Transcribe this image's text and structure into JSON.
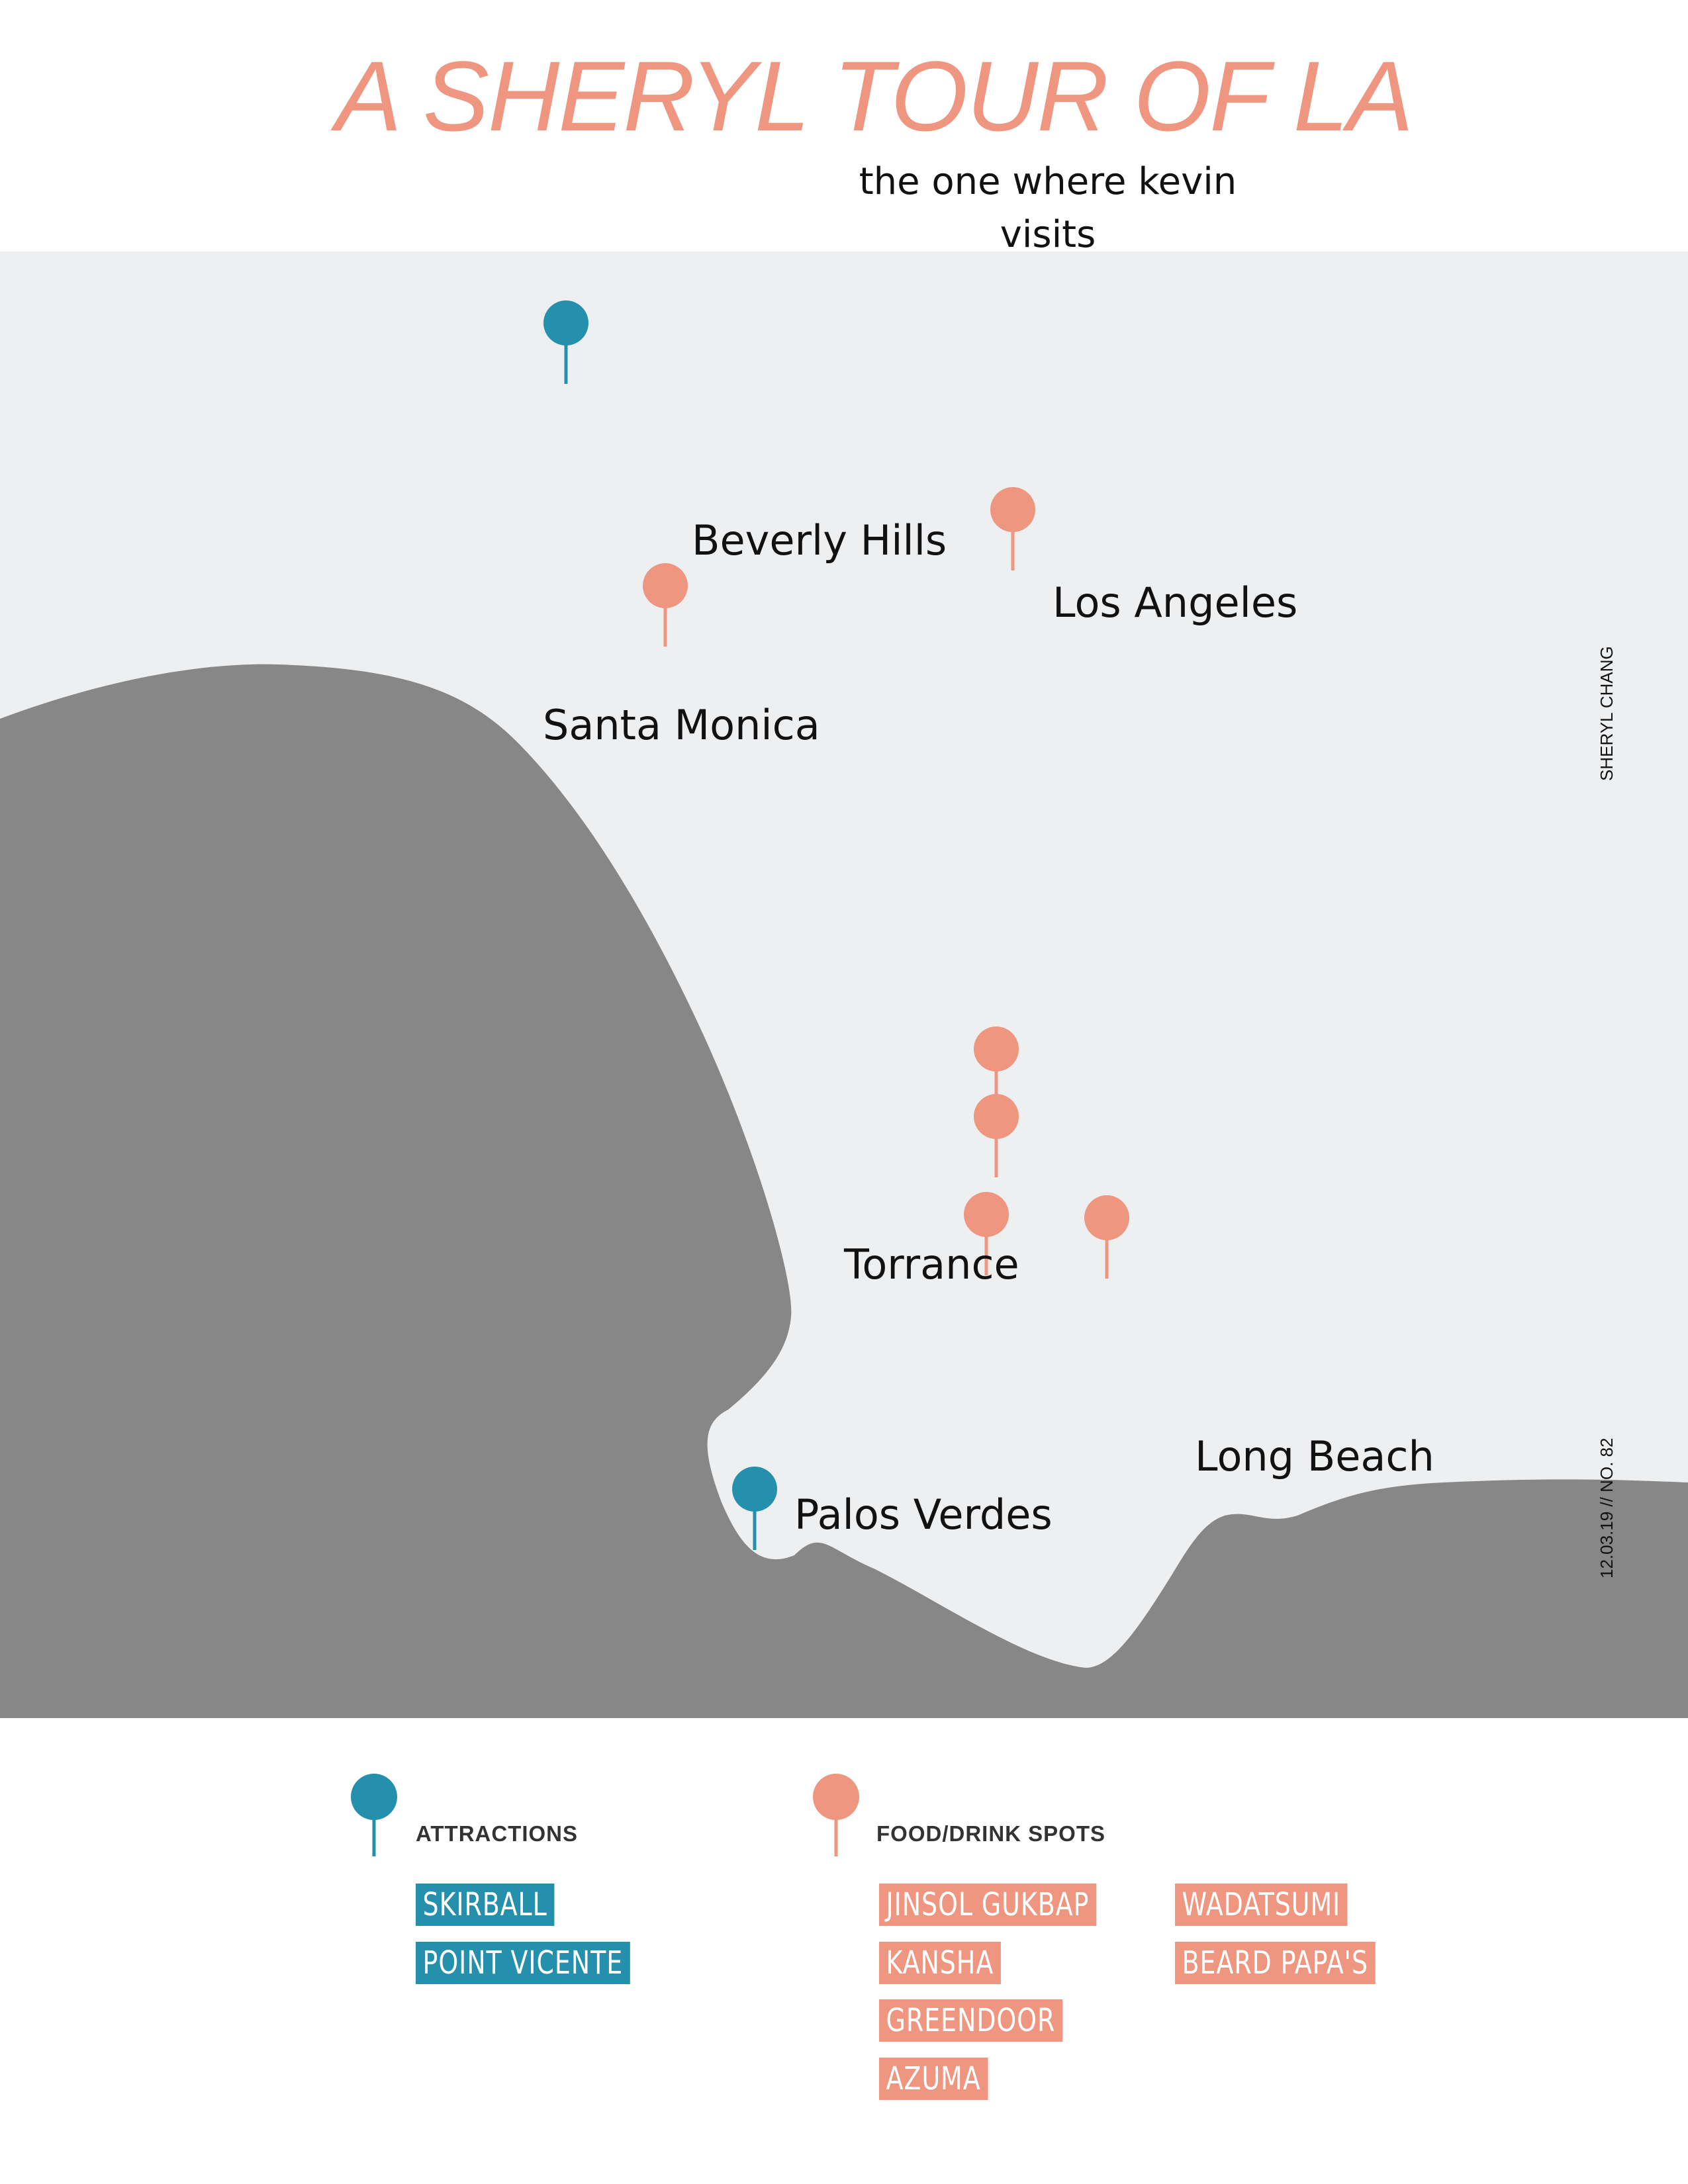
{
  "header": {
    "title": "A SHERYL TOUR OF LA",
    "subtitle": "the one where kevin visits"
  },
  "colors": {
    "title": "#EE9680",
    "attraction": "#2590AB",
    "food": "#EE9680",
    "land": "#EEEFF1",
    "water": "#868786",
    "text": "#111111"
  },
  "map": {
    "places": {
      "beverly_hills": "Beverly Hills",
      "los_angeles": "Los Angeles",
      "santa_monica": "Santa Monica",
      "torrance": "Torrance",
      "long_beach": "Long Beach",
      "palos_verdes": "Palos Verdes"
    },
    "side_labels": {
      "author": "SHERYL CHANG",
      "issue": "12.03.19  //  NO. 82"
    },
    "pins": [
      {
        "category": "attraction",
        "icon": "map-pin-icon"
      },
      {
        "category": "food",
        "icon": "map-pin-icon"
      },
      {
        "category": "food",
        "icon": "map-pin-icon"
      },
      {
        "category": "food",
        "icon": "map-pin-icon"
      },
      {
        "category": "food",
        "icon": "map-pin-icon"
      },
      {
        "category": "food",
        "icon": "map-pin-icon"
      },
      {
        "category": "food",
        "icon": "map-pin-icon"
      },
      {
        "category": "attraction",
        "icon": "map-pin-icon"
      }
    ]
  },
  "legend": {
    "attractions": {
      "heading": "ATTRACTIONS",
      "items": [
        "SKIRBALL",
        "POINT VICENTE"
      ]
    },
    "food": {
      "heading": "FOOD/DRINK SPOTS",
      "items": [
        "JINSOL GUKBAP",
        "KANSHA",
        "GREENDOOR",
        "AZUMA",
        "WADATSUMI",
        "BEARD PAPA'S"
      ]
    }
  }
}
